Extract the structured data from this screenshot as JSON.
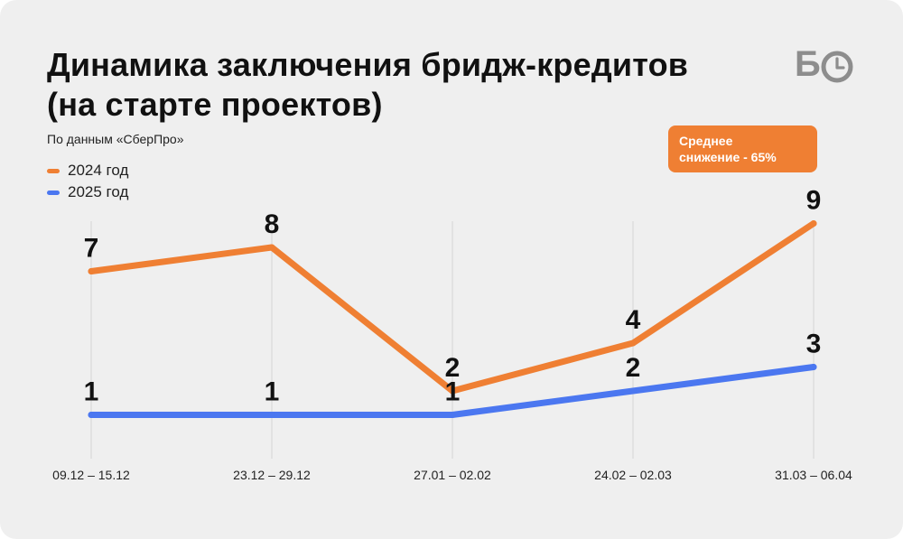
{
  "header": {
    "title_line1": "Динамика заключения бридж-кредитов",
    "title_line2": "(на старте проектов)",
    "subtitle": "По данным «СберПро»"
  },
  "badge": {
    "line1": "Среднее",
    "line2": "снижение - 65%"
  },
  "logo": {
    "letter": "Б",
    "icon": "clock-icon"
  },
  "colors": {
    "background": "#efefef",
    "series_2024": "#ef7f33",
    "series_2025": "#4b77f0",
    "gridline": "#d6d6d6"
  },
  "chart_data": {
    "type": "line",
    "categories": [
      "09.12 – 15.12",
      "23.12 – 29.12",
      "27.01 – 02.02",
      "24.02 – 02.03",
      "31.03 – 06.04"
    ],
    "series": [
      {
        "name": "2024 год",
        "values": [
          7,
          8,
          2,
          4,
          9
        ]
      },
      {
        "name": "2025 год",
        "values": [
          1,
          1,
          1,
          2,
          3
        ]
      }
    ],
    "ylim": [
      0,
      10
    ],
    "data_labels": true,
    "legend": "top-left",
    "grid": "vertical"
  }
}
